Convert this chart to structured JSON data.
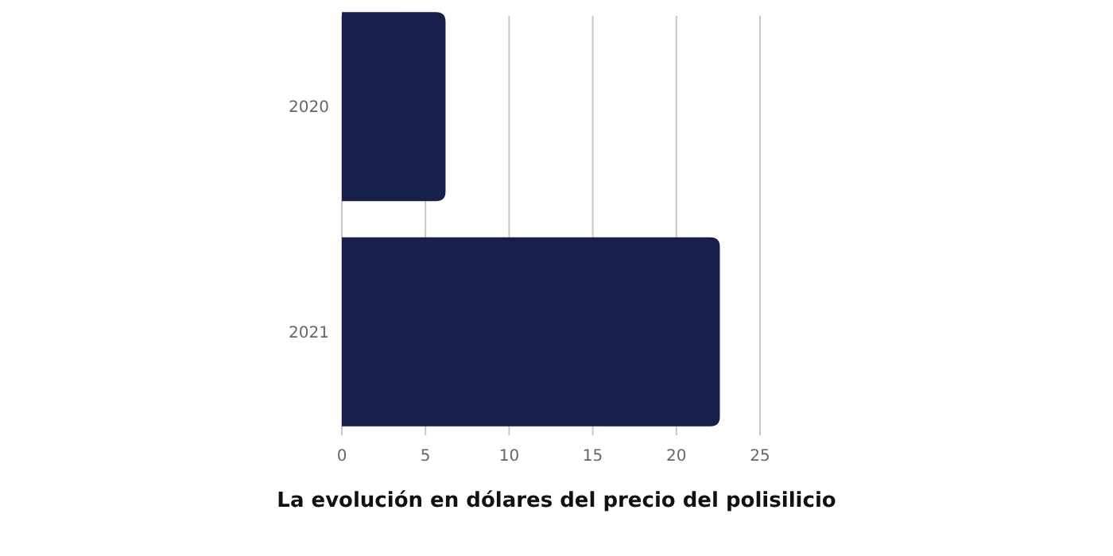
{
  "chart_data": {
    "type": "bar",
    "orientation": "horizontal",
    "xlabel": "La evolución en dólares del precio del polisilicio",
    "categories": [
      "2020",
      "2021"
    ],
    "values": [
      6.2,
      22.6
    ],
    "color": "#16204a",
    "xlim": [
      0,
      25
    ],
    "xticks": [
      0,
      5,
      10,
      15,
      20,
      25
    ],
    "grid": "x"
  }
}
